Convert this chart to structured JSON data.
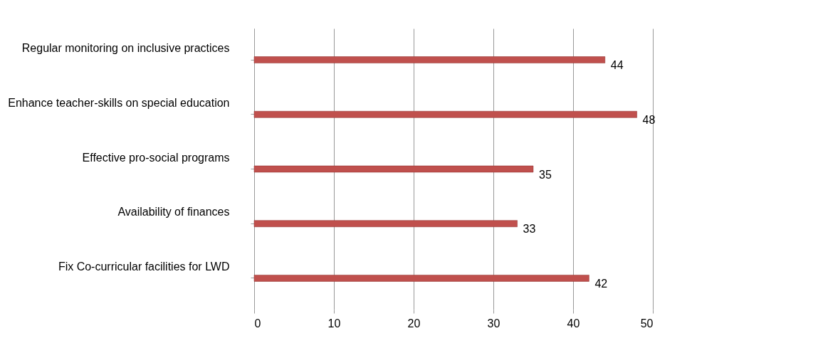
{
  "chart_data": {
    "type": "bar",
    "orientation": "horizontal",
    "categories": [
      "Regular monitoring on inclusive practices",
      "Enhance teacher-skills on special education",
      "Effective pro-social programs",
      "Availability of finances",
      "Fix Co-curricular facilities for LWD"
    ],
    "values": [
      44,
      48,
      35,
      33,
      42
    ],
    "color": "#c0504d",
    "xlim": [
      0,
      50
    ],
    "xticks": [
      0,
      10,
      20,
      30,
      40,
      50
    ],
    "grid": "x",
    "data_labels": true
  }
}
